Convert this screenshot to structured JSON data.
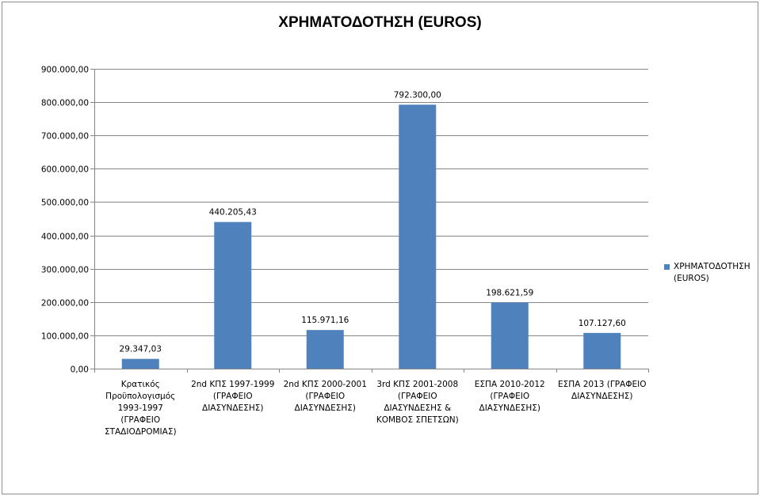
{
  "chart_data": {
    "type": "bar",
    "title": "ΧΡΗΜΑΤΟΔΟΤΗΣΗ (EUROS)",
    "categories": [
      [
        "Κρατικός",
        "Προϋπολογισμός",
        "1993-1997",
        "(ΓΡΑΦΕΙΟ",
        "ΣΤΑΔΙΟΔΡΟΜΙΑΣ)"
      ],
      [
        "2nd ΚΠΣ 1997-1999",
        "(ΓΡΑΦΕΙΟ",
        "ΔΙΑΣΥΝΔΕΣΗΣ)"
      ],
      [
        "2nd ΚΠΣ 2000-2001",
        "(ΓΡΑΦΕΙΟ",
        "ΔΙΑΣΥΝΔΕΣΗΣ)"
      ],
      [
        "3rd ΚΠΣ 2001-2008",
        "(ΓΡΑΦΕΙΟ",
        "ΔΙΑΣΥΝΔΕΣΗΣ &",
        "ΚΟΜΒΟΣ ΣΠΕΤΣΩΝ)"
      ],
      [
        "ΕΣΠΑ 2010-2012",
        "(ΓΡΑΦΕΙΟ",
        "ΔΙΑΣΥΝΔΕΣΗΣ)"
      ],
      [
        "ΕΣΠΑ 2013 (ΓΡΑΦΕΙΟ",
        "ΔΙΑΣΥΝΔΕΣΗΣ)"
      ]
    ],
    "series": [
      {
        "name": "ΧΡΗΜΑΤΟΔΟΤΗΣΗ (EUROS)",
        "color": "#4f81bd",
        "values": [
          29347.03,
          440205.43,
          115971.16,
          792300.0,
          198621.59,
          107127.6
        ],
        "labels": [
          "29.347,03",
          "440.205,43",
          "115.971,16",
          "792.300,00",
          "198.621,59",
          "107.127,60"
        ]
      }
    ],
    "ylim": [
      0,
      900000
    ],
    "yticks": [
      0,
      100000,
      200000,
      300000,
      400000,
      500000,
      600000,
      700000,
      800000,
      900000
    ],
    "ytick_labels": [
      "0,00",
      "100.000,00",
      "200.000,00",
      "300.000,00",
      "400.000,00",
      "500.000,00",
      "600.000,00",
      "700.000,00",
      "800.000,00",
      "900.000,00"
    ],
    "grid": true,
    "legend": "right",
    "legend_lines": [
      "ΧΡΗΜΑΤΟΔΟΤΗΣΗ",
      "(EUROS)"
    ]
  }
}
